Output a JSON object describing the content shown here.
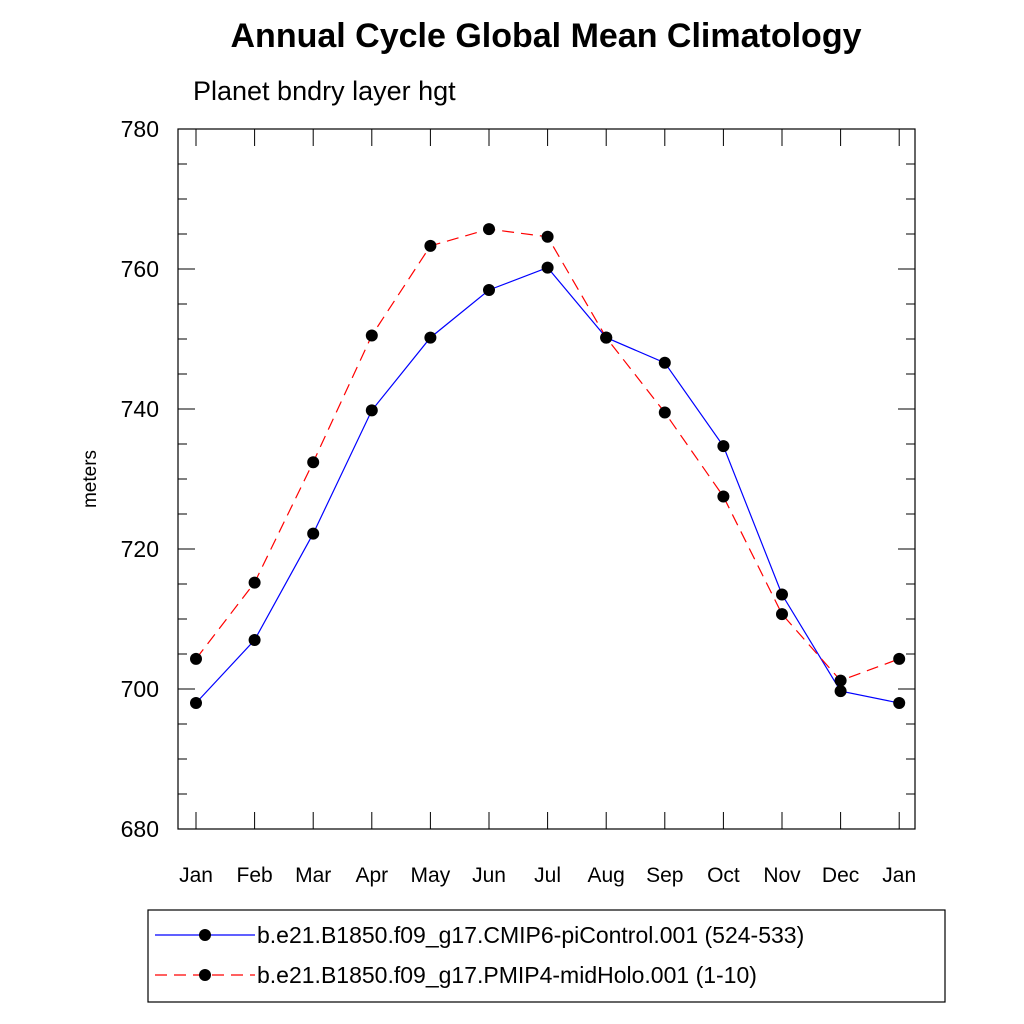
{
  "chart_data": {
    "type": "line",
    "title": "Annual Cycle Global Mean Climatology",
    "subtitle": "Planet bndry layer hgt",
    "xlabel": "",
    "ylabel": "meters",
    "categories": [
      "Jan",
      "Feb",
      "Mar",
      "Apr",
      "May",
      "Jun",
      "Jul",
      "Aug",
      "Sep",
      "Oct",
      "Nov",
      "Dec",
      "Jan"
    ],
    "ylim": [
      680,
      780
    ],
    "yticks": [
      "680",
      "700",
      "720",
      "740",
      "760",
      "780"
    ],
    "grid": false,
    "legend_position": "bottom",
    "series": [
      {
        "name": "b.e21.B1850.f09_g17.CMIP6-piControl.001 (524-533)",
        "color": "#0000ff",
        "line_style": "solid",
        "marker": "filled-circle",
        "values": [
          698.0,
          707.0,
          722.2,
          739.8,
          750.2,
          757.0,
          760.2,
          750.2,
          746.6,
          734.7,
          713.5,
          699.7,
          698.0
        ]
      },
      {
        "name": "b.e21.B1850.f09_g17.PMIP4-midHolo.001 (1-10)",
        "color": "#ff0000",
        "line_style": "dashed",
        "marker": "filled-circle",
        "values": [
          704.3,
          715.2,
          732.4,
          750.5,
          763.3,
          765.7,
          764.6,
          750.2,
          739.5,
          727.5,
          710.7,
          701.2,
          704.3
        ]
      }
    ]
  }
}
